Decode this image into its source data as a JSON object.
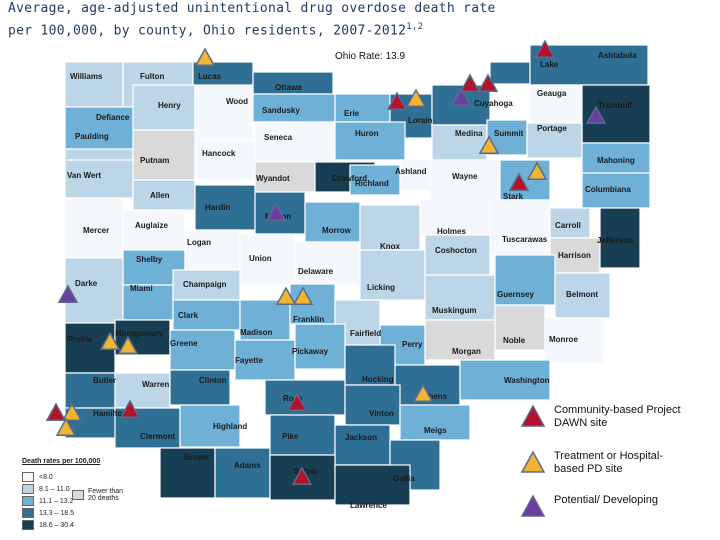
{
  "title": {
    "line1": "Average, age-adjusted unintentional drug overdose death rate",
    "line2": "per 100,000, by county, Ohio residents, 2007-2012",
    "superscript": "1,2"
  },
  "state_rate": "Ohio Rate:  13.9",
  "rate_legend": {
    "header": "Death rates per 100,000",
    "bins": [
      {
        "label": "<8.0",
        "color": "#f4f7fb"
      },
      {
        "label": "8.1 – 11.0",
        "color": "#bcd6e8"
      },
      {
        "label": "11.1 – 13.2",
        "color": "#6fb0d6"
      },
      {
        "label": "13.3 – 18.5",
        "color": "#2e6f93"
      },
      {
        "label": "18.6 – 30.4",
        "color": "#173e52"
      }
    ],
    "suppressed_label": "Fewer than 20 deaths",
    "suppressed_color": "#d9d9d9"
  },
  "site_legend": [
    {
      "label": "Community-based Project DAWN site",
      "color": "#b3122b"
    },
    {
      "label": "Treatment or Hospital-based PD site",
      "color": "#f2b531"
    },
    {
      "label": "Potential/ Developing",
      "color": "#6a3ea1"
    }
  ],
  "colors": {
    "border": "#ffffff",
    "marker_outline": "#5a6a8a"
  },
  "counties": [
    {
      "name": "Williams",
      "bin": 1
    },
    {
      "name": "Fulton",
      "bin": 1
    },
    {
      "name": "Lucas",
      "bin": 3
    },
    {
      "name": "Ottawa",
      "bin": 3
    },
    {
      "name": "Defiance",
      "bin": 2
    },
    {
      "name": "Henry",
      "bin": 1
    },
    {
      "name": "Wood",
      "bin": 0
    },
    {
      "name": "Sandusky",
      "bin": 2
    },
    {
      "name": "Erie",
      "bin": 2
    },
    {
      "name": "Lorain",
      "bin": 3
    },
    {
      "name": "Cuyahoga",
      "bin": 3
    },
    {
      "name": "Lake",
      "bin": 3
    },
    {
      "name": "Ashtabula",
      "bin": 3
    },
    {
      "name": "Geauga",
      "bin": 0
    },
    {
      "name": "Trumbull",
      "bin": 4
    },
    {
      "name": "Paulding",
      "bin": 1
    },
    {
      "name": "Putnam",
      "bin": 5
    },
    {
      "name": "Hancock",
      "bin": 0
    },
    {
      "name": "Seneca",
      "bin": 0
    },
    {
      "name": "Huron",
      "bin": 2
    },
    {
      "name": "Medina",
      "bin": 1
    },
    {
      "name": "Summit",
      "bin": 2
    },
    {
      "name": "Portage",
      "bin": 1
    },
    {
      "name": "Van Wert",
      "bin": 1
    },
    {
      "name": "Allen",
      "bin": 1
    },
    {
      "name": "Wyandot",
      "bin": 5
    },
    {
      "name": "Crawford",
      "bin": 4
    },
    {
      "name": "Richland",
      "bin": 2
    },
    {
      "name": "Ashland",
      "bin": 0
    },
    {
      "name": "Wayne",
      "bin": 0
    },
    {
      "name": "Stark",
      "bin": 2
    },
    {
      "name": "Mahoning",
      "bin": 2
    },
    {
      "name": "Columbiana",
      "bin": 2
    },
    {
      "name": "Mercer",
      "bin": 0
    },
    {
      "name": "Auglaize",
      "bin": 0
    },
    {
      "name": "Hardin",
      "bin": 3
    },
    {
      "name": "Marion",
      "bin": 3
    },
    {
      "name": "Morrow",
      "bin": 2
    },
    {
      "name": "Knox",
      "bin": 1
    },
    {
      "name": "Holmes",
      "bin": 0
    },
    {
      "name": "Coshocton",
      "bin": 1
    },
    {
      "name": "Tuscarawas",
      "bin": 0
    },
    {
      "name": "Carroll",
      "bin": 1
    },
    {
      "name": "Harrison",
      "bin": 5
    },
    {
      "name": "Jefferson",
      "bin": 4
    },
    {
      "name": "Shelby",
      "bin": 2
    },
    {
      "name": "Logan",
      "bin": 0
    },
    {
      "name": "Union",
      "bin": 0
    },
    {
      "name": "Delaware",
      "bin": 0
    },
    {
      "name": "Licking",
      "bin": 1
    },
    {
      "name": "Muskingum",
      "bin": 1
    },
    {
      "name": "Guernsey",
      "bin": 2
    },
    {
      "name": "Belmont",
      "bin": 1
    },
    {
      "name": "Darke",
      "bin": 1
    },
    {
      "name": "Miami",
      "bin": 2
    },
    {
      "name": "Champaign",
      "bin": 1
    },
    {
      "name": "Clark",
      "bin": 2
    },
    {
      "name": "Madison",
      "bin": 2
    },
    {
      "name": "Franklin",
      "bin": 2
    },
    {
      "name": "Fairfield",
      "bin": 1
    },
    {
      "name": "Perry",
      "bin": 2
    },
    {
      "name": "Morgan",
      "bin": 5
    },
    {
      "name": "Noble",
      "bin": 5
    },
    {
      "name": "Monroe",
      "bin": 0
    },
    {
      "name": "Preble",
      "bin": 4
    },
    {
      "name": "Montgomery",
      "bin": 4
    },
    {
      "name": "Greene",
      "bin": 2
    },
    {
      "name": "Fayette",
      "bin": 2
    },
    {
      "name": "Pickaway",
      "bin": 2
    },
    {
      "name": "Hocking",
      "bin": 3
    },
    {
      "name": "Athens",
      "bin": 3
    },
    {
      "name": "Washington",
      "bin": 2
    },
    {
      "name": "Butler",
      "bin": 3
    },
    {
      "name": "Warren",
      "bin": 1
    },
    {
      "name": "Clinton",
      "bin": 3
    },
    {
      "name": "Ross",
      "bin": 3
    },
    {
      "name": "Vinton",
      "bin": 3
    },
    {
      "name": "Meigs",
      "bin": 2
    },
    {
      "name": "Hamilton",
      "bin": 3
    },
    {
      "name": "Clermont",
      "bin": 3
    },
    {
      "name": "Highland",
      "bin": 2
    },
    {
      "name": "Brown",
      "bin": 4
    },
    {
      "name": "Adams",
      "bin": 3
    },
    {
      "name": "Pike",
      "bin": 3
    },
    {
      "name": "Jackson",
      "bin": 3
    },
    {
      "name": "Scioto",
      "bin": 4
    },
    {
      "name": "Gallia",
      "bin": 3
    },
    {
      "name": "Lawrence",
      "bin": 4
    }
  ],
  "markers": [
    {
      "type": 1,
      "county": "Lucas"
    },
    {
      "type": 0,
      "county": "Lake"
    },
    {
      "type": 2,
      "county": "Cuyahoga"
    },
    {
      "type": 0,
      "county": "Cuyahoga"
    },
    {
      "type": 0,
      "county": "Cuyahoga"
    },
    {
      "type": 0,
      "county": "Lorain"
    },
    {
      "type": 1,
      "county": "Lorain"
    },
    {
      "type": 2,
      "county": "Trumbull"
    },
    {
      "type": 1,
      "county": "Summit"
    },
    {
      "type": 0,
      "county": "Stark"
    },
    {
      "type": 1,
      "county": "Stark"
    },
    {
      "type": 2,
      "county": "Marion"
    },
    {
      "type": 2,
      "county": "Darke"
    },
    {
      "type": 1,
      "county": "Franklin"
    },
    {
      "type": 1,
      "county": "Franklin"
    },
    {
      "type": 1,
      "county": "Montgomery"
    },
    {
      "type": 1,
      "county": "Montgomery"
    },
    {
      "type": 0,
      "county": "Ross"
    },
    {
      "type": 1,
      "county": "Athens"
    },
    {
      "type": 0,
      "county": "Hamilton"
    },
    {
      "type": 1,
      "county": "Hamilton"
    },
    {
      "type": 1,
      "county": "Hamilton"
    },
    {
      "type": 0,
      "county": "Hamilton"
    },
    {
      "type": 0,
      "county": "Scioto"
    }
  ]
}
